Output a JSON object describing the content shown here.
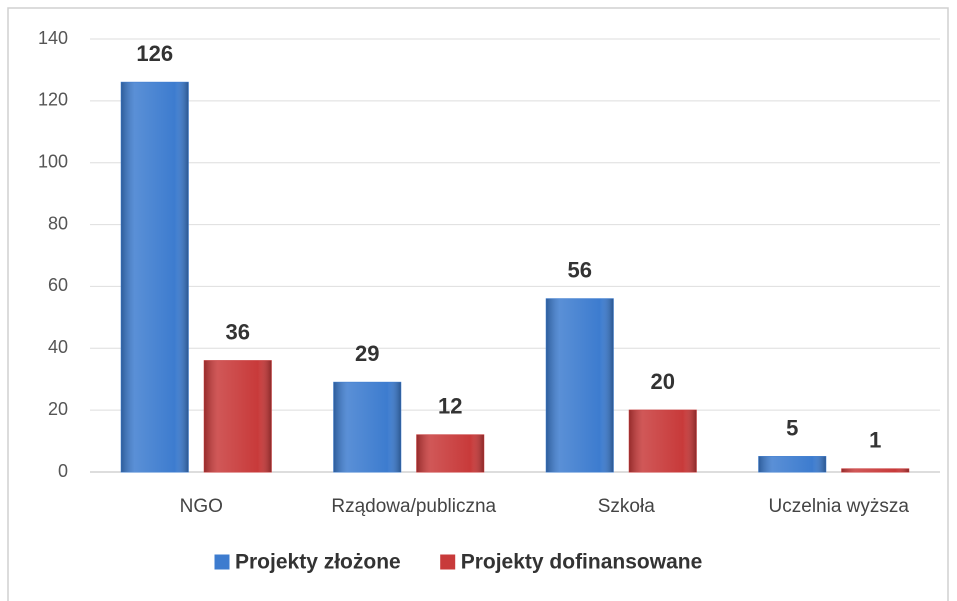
{
  "chart_data": {
    "type": "bar",
    "categories": [
      "NGO",
      "Rządowa/publiczna",
      "Szkoła",
      "Uczelnia wyższa"
    ],
    "series": [
      {
        "name": "Projekty złożone",
        "color": "#3d7ccf",
        "values": [
          126,
          29,
          56,
          5
        ]
      },
      {
        "name": "Projekty dofinansowane",
        "color": "#c83a3a",
        "values": [
          36,
          12,
          20,
          1
        ]
      }
    ],
    "ylim": [
      0,
      140
    ],
    "yticks": [
      0,
      20,
      40,
      60,
      80,
      100,
      120,
      140
    ],
    "grid": true,
    "legend": "bottom"
  }
}
